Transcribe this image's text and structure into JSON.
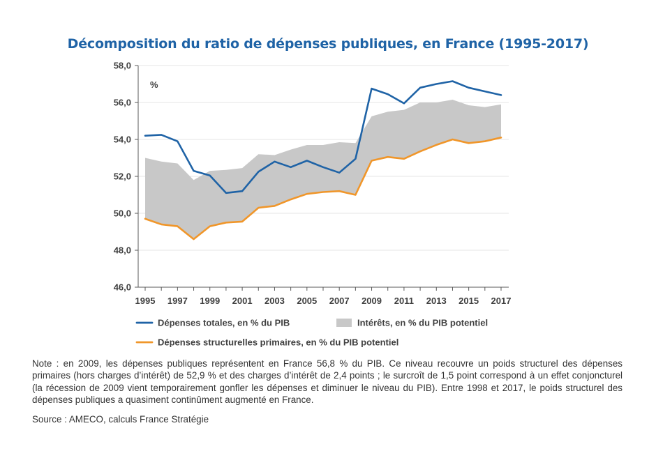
{
  "colors": {
    "title": "#1f63a6",
    "total": "#1f63a6",
    "structural": "#f0962a",
    "interest": "#c8c8c8",
    "grid": "#e4e4e4",
    "axis": "#595959"
  },
  "chart_data": {
    "type": "line",
    "title": "Décomposition du ratio de dépenses publiques, en France (1995-2017)",
    "ylabel": "%",
    "xlabel": "",
    "ylim": [
      46,
      58
    ],
    "yticks": [
      "46,0",
      "48,0",
      "50,0",
      "52,0",
      "54,0",
      "56,0",
      "58,0"
    ],
    "ytick_values": [
      46,
      48,
      50,
      52,
      54,
      56,
      58
    ],
    "xticks": [
      "1995",
      "1997",
      "1999",
      "2001",
      "2003",
      "2005",
      "2007",
      "2009",
      "2011",
      "2013",
      "2015",
      "2017"
    ],
    "x": [
      1995,
      1996,
      1997,
      1998,
      1999,
      2000,
      2001,
      2002,
      2003,
      2004,
      2005,
      2006,
      2007,
      2008,
      2009,
      2010,
      2011,
      2012,
      2013,
      2014,
      2015,
      2016,
      2017
    ],
    "series": [
      {
        "name": "Dépenses totales, en % du PIB",
        "kind": "line",
        "values": [
          54.2,
          54.25,
          53.9,
          52.3,
          52.05,
          51.1,
          51.2,
          52.25,
          52.8,
          52.5,
          52.85,
          52.5,
          52.2,
          52.95,
          56.75,
          56.45,
          55.95,
          56.8,
          57.0,
          57.15,
          56.8,
          56.6,
          56.4
        ]
      },
      {
        "name": "Dépenses structurelles primaires, en % du PIB potentiel",
        "kind": "line",
        "values": [
          49.7,
          49.4,
          49.3,
          48.6,
          49.3,
          49.5,
          49.55,
          50.3,
          50.4,
          50.75,
          51.05,
          51.15,
          51.2,
          51.0,
          52.85,
          53.05,
          52.95,
          53.35,
          53.7,
          54.0,
          53.8,
          53.9,
          54.1
        ]
      },
      {
        "name": "Intérêts, en % du PIB potentiel",
        "kind": "band",
        "values": [
          3.3,
          3.4,
          3.4,
          3.2,
          3.0,
          2.85,
          2.9,
          2.9,
          2.75,
          2.7,
          2.65,
          2.55,
          2.65,
          2.8,
          2.4,
          2.45,
          2.65,
          2.65,
          2.3,
          2.15,
          2.05,
          1.85,
          1.8
        ]
      }
    ],
    "legend": [
      {
        "label": "Dépenses totales, en % du PIB",
        "kind": "line",
        "color": "#1f63a6"
      },
      {
        "label": "Intérêts, en % du PIB potentiel",
        "kind": "box",
        "color": "#c8c8c8"
      },
      {
        "label": "Dépenses structurelles primaires, en % du PIB potentiel",
        "kind": "line",
        "color": "#f0962a"
      }
    ]
  },
  "note": "Note : en 2009, les dépenses publiques représentent en France 56,8 % du PIB. Ce niveau recouvre un poids structurel des dépenses primaires (hors charges d’intérêt) de 52,9 % et des charges d’intérêt de 2,4 points ; le surcroît de 1,5 point correspond à un effet conjoncturel (la récession de 2009 vient temporairement gonfler les dépenses et diminuer le niveau du PIB). Entre 1998 et 2017, le poids structurel des dépenses publiques a quasiment continûment augmenté en France.",
  "source": "Source : AMECO, calculs France Stratégie"
}
